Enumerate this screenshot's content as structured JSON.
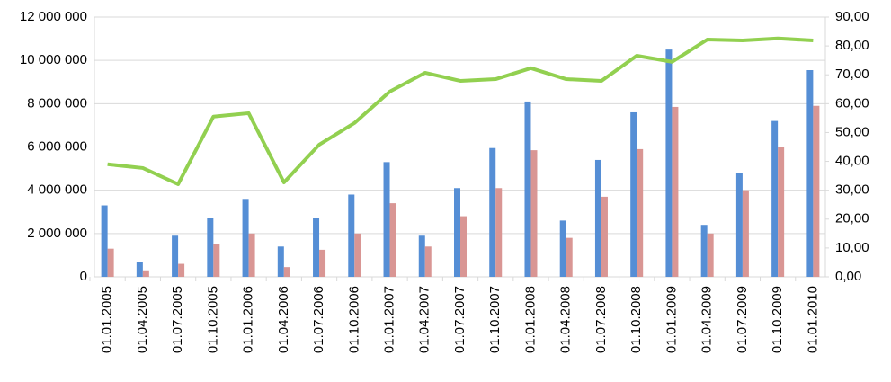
{
  "chart_data": {
    "type": "bar",
    "categories": [
      "01.01.2005",
      "01.04.2005",
      "01.07.2005",
      "01.10.2005",
      "01.01.2006",
      "01.04.2006",
      "01.07.2006",
      "01.10.2006",
      "01.01.2007",
      "01.04.2007",
      "01.07.2007",
      "01.10.2007",
      "01.01.2008",
      "01.04.2008",
      "01.07.2008",
      "01.10.2008",
      "01.01.2009",
      "01.04.2009",
      "01.07.2009",
      "01.10.2009",
      "01.01.2010"
    ],
    "series": [
      {
        "color": "#558ed5",
        "values": [
          3300000,
          700000,
          1900000,
          2700000,
          3600000,
          1400000,
          2700000,
          3800000,
          5300000,
          1900000,
          4100000,
          5950000,
          8100000,
          2600000,
          5400000,
          7600000,
          10500000,
          2400000,
          4800000,
          7200000,
          9550000
        ]
      },
      {
        "color": "#d99694",
        "values": [
          1300000,
          300000,
          600000,
          1500000,
          2000000,
          450000,
          1250000,
          2000000,
          3400000,
          1400000,
          2800000,
          4100000,
          5850000,
          1800000,
          3700000,
          5900000,
          7850000,
          2000000,
          4000000,
          6000000,
          7900000
        ]
      },
      {
        "type": "line",
        "axis": "y2",
        "color": "#92d050",
        "values": [
          39,
          37.7,
          32.1,
          55.5,
          56.7,
          32.7,
          45.8,
          53.3,
          64.2,
          70.7,
          67.9,
          68.5,
          72.3,
          68.5,
          67.9,
          76.6,
          74.5,
          82.2,
          81.9,
          82.6,
          81.9
        ]
      }
    ],
    "ylim": [
      0,
      12000000
    ],
    "yticks": [
      0,
      {
        "value": 2000000,
        "label": "2 000 000"
      },
      {
        "value": 4000000,
        "label": "4 000 000"
      },
      {
        "value": 6000000,
        "label": "6 000 000"
      },
      {
        "value": 8000000,
        "label": "8 000 000"
      },
      {
        "value": 10000000,
        "label": "10 000 000"
      },
      {
        "value": 12000000,
        "label": "12 000 000"
      }
    ],
    "y2lim": [
      0,
      90
    ],
    "y2ticks": [
      {
        "value": 0,
        "label": "0,00"
      },
      {
        "value": 10,
        "label": "10,00"
      },
      {
        "value": 20,
        "label": "20,00"
      },
      {
        "value": 30,
        "label": "30,00"
      },
      {
        "value": 40,
        "label": "40,00"
      },
      {
        "value": 50,
        "label": "50,00"
      },
      {
        "value": 60,
        "label": "60,00"
      },
      {
        "value": 70,
        "label": "70,00"
      },
      {
        "value": 80,
        "label": "80,00"
      },
      {
        "value": 90,
        "label": "90,00"
      }
    ],
    "grid": true
  }
}
